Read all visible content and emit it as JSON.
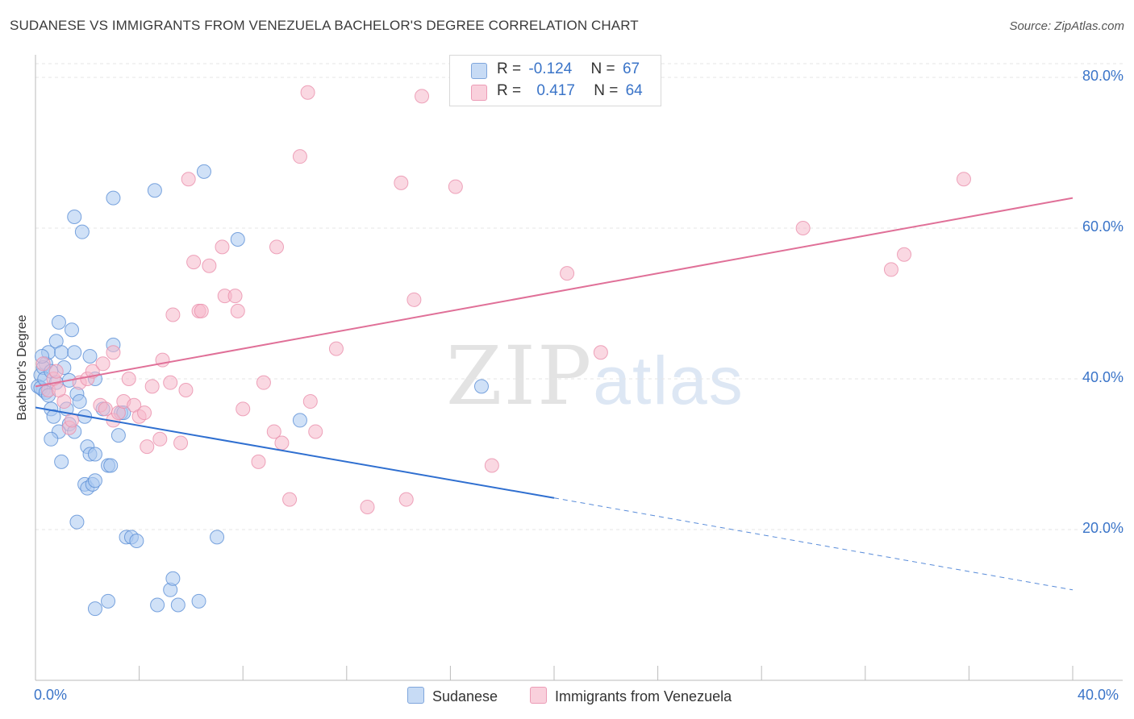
{
  "title": "SUDANESE VS IMMIGRANTS FROM VENEZUELA BACHELOR'S DEGREE CORRELATION CHART",
  "source": "Source: ZipAtlas.com",
  "watermark": {
    "zip": "ZIP",
    "atlas": "atlas"
  },
  "legend_top": {
    "rows": [
      {
        "r_label": "R =",
        "r_value": "-0.124",
        "n_label": "N =",
        "n_value": "67",
        "color": "#a9c8f0"
      },
      {
        "r_label": "R =",
        "r_value": "0.417",
        "n_label": "N =",
        "n_value": "64",
        "color": "#f6b8cb"
      }
    ]
  },
  "chart_data": {
    "type": "scatter",
    "ylabel": "Bachelor's Degree",
    "xlim": [
      0,
      40
    ],
    "ylim": [
      0,
      82
    ],
    "x_tick_labels": {
      "left": "0.0%",
      "right": "40.0%"
    },
    "y_ticks": [
      {
        "value": 20,
        "label": "20.0%"
      },
      {
        "value": 40,
        "label": "40.0%"
      },
      {
        "value": 60,
        "label": "60.0%"
      },
      {
        "value": 80,
        "label": "80.0%"
      }
    ],
    "grid": true,
    "legend": "bottom",
    "series": [
      {
        "name": "Sudanese",
        "color": "#5b8fd6",
        "fill": "#a9c8f0",
        "trend": {
          "x0": 0,
          "y0": 36.2,
          "x1": 20,
          "y1": 24.2,
          "x_end": 40,
          "y_end": 12.0,
          "color": "#2f6fd0"
        },
        "points": [
          [
            0.2,
            40.5
          ],
          [
            0.3,
            38.5
          ],
          [
            0.4,
            42
          ],
          [
            0.5,
            43.5
          ],
          [
            0.6,
            36
          ],
          [
            0.7,
            35
          ],
          [
            0.8,
            45
          ],
          [
            0.9,
            47.5
          ],
          [
            1,
            43.5
          ],
          [
            1.1,
            41.5
          ],
          [
            1.3,
            39.8
          ],
          [
            1.4,
            46.5
          ],
          [
            1.5,
            43.5
          ],
          [
            1.6,
            38
          ],
          [
            1.7,
            37
          ],
          [
            1.3,
            34
          ],
          [
            1.5,
            33
          ],
          [
            0.9,
            33
          ],
          [
            0.6,
            32
          ],
          [
            1.0,
            29
          ],
          [
            1.9,
            35
          ],
          [
            1.5,
            61.5
          ],
          [
            1.8,
            59.5
          ],
          [
            2.3,
            40
          ],
          [
            2.1,
            43
          ],
          [
            3.0,
            64
          ],
          [
            3.0,
            44.5
          ],
          [
            3.2,
            32.5
          ],
          [
            3.3,
            35.5
          ],
          [
            3.4,
            35.5
          ],
          [
            1.9,
            26
          ],
          [
            2.0,
            25.5
          ],
          [
            2.2,
            26
          ],
          [
            2.3,
            26.5
          ],
          [
            2.8,
            28.5
          ],
          [
            2.9,
            28.5
          ],
          [
            2.0,
            31
          ],
          [
            2.1,
            30
          ],
          [
            2.3,
            30
          ],
          [
            1.6,
            21
          ],
          [
            3.5,
            19
          ],
          [
            3.7,
            19
          ],
          [
            3.9,
            18.5
          ],
          [
            4.6,
            65
          ],
          [
            5.2,
            12
          ],
          [
            5.3,
            13.5
          ],
          [
            4.7,
            10
          ],
          [
            5.5,
            10
          ],
          [
            6.3,
            10.5
          ],
          [
            6.5,
            67.5
          ],
          [
            2.8,
            10.5
          ],
          [
            2.3,
            9.5
          ],
          [
            7.8,
            58.5
          ],
          [
            7.0,
            19
          ],
          [
            10.2,
            34.5
          ],
          [
            17.2,
            39
          ],
          [
            0.1,
            39
          ],
          [
            0.2,
            38.8
          ],
          [
            0.3,
            41.5
          ],
          [
            0.35,
            40
          ],
          [
            0.4,
            38.2
          ],
          [
            0.6,
            41
          ],
          [
            0.8,
            39.5
          ],
          [
            1.2,
            36
          ],
          [
            0.5,
            37.8
          ],
          [
            0.25,
            43
          ],
          [
            2.6,
            36
          ]
        ]
      },
      {
        "name": "Immigrants from Venezuela",
        "color": "#ea8fab",
        "fill": "#f6b8cb",
        "trend": {
          "x0": 0,
          "y0": 39.0,
          "x1": 40,
          "y1": 64.0,
          "color": "#e07098"
        },
        "points": [
          [
            0.3,
            42
          ],
          [
            0.5,
            38.5
          ],
          [
            0.7,
            40
          ],
          [
            0.8,
            41
          ],
          [
            1.1,
            37
          ],
          [
            1.3,
            33.5
          ],
          [
            1.4,
            34.5
          ],
          [
            1.7,
            39.5
          ],
          [
            2.0,
            40
          ],
          [
            2.2,
            41
          ],
          [
            2.6,
            42
          ],
          [
            2.5,
            36.5
          ],
          [
            2.7,
            36
          ],
          [
            3.0,
            34.5
          ],
          [
            3.0,
            43.5
          ],
          [
            3.2,
            35.5
          ],
          [
            3.4,
            37
          ],
          [
            3.6,
            40
          ],
          [
            3.8,
            36.5
          ],
          [
            4.0,
            35
          ],
          [
            4.2,
            35.5
          ],
          [
            4.3,
            31
          ],
          [
            4.5,
            39
          ],
          [
            4.8,
            32
          ],
          [
            4.9,
            42.5
          ],
          [
            5.2,
            39.5
          ],
          [
            5.3,
            48.5
          ],
          [
            5.6,
            31.5
          ],
          [
            5.8,
            38.5
          ],
          [
            5.9,
            66.5
          ],
          [
            6.1,
            55.5
          ],
          [
            6.3,
            49
          ],
          [
            6.4,
            49
          ],
          [
            6.7,
            55
          ],
          [
            7.2,
            57.5
          ],
          [
            7.3,
            51
          ],
          [
            7.7,
            51
          ],
          [
            7.8,
            49
          ],
          [
            8.0,
            36
          ],
          [
            8.6,
            29
          ],
          [
            8.8,
            39.5
          ],
          [
            9.2,
            33
          ],
          [
            9.3,
            57.5
          ],
          [
            9.5,
            31.5
          ],
          [
            9.8,
            24
          ],
          [
            10.2,
            69.5
          ],
          [
            10.5,
            78
          ],
          [
            10.6,
            37
          ],
          [
            10.8,
            33
          ],
          [
            11.6,
            44
          ],
          [
            12.8,
            23
          ],
          [
            14.1,
            66
          ],
          [
            14.3,
            24
          ],
          [
            14.6,
            50.5
          ],
          [
            14.9,
            77.5
          ],
          [
            16.2,
            65.5
          ],
          [
            17.6,
            28.5
          ],
          [
            20.5,
            54
          ],
          [
            21.8,
            43.5
          ],
          [
            29.6,
            60
          ],
          [
            33.0,
            54.5
          ],
          [
            33.5,
            56.5
          ],
          [
            35.8,
            66.5
          ],
          [
            0.9,
            38.5
          ]
        ]
      }
    ]
  }
}
